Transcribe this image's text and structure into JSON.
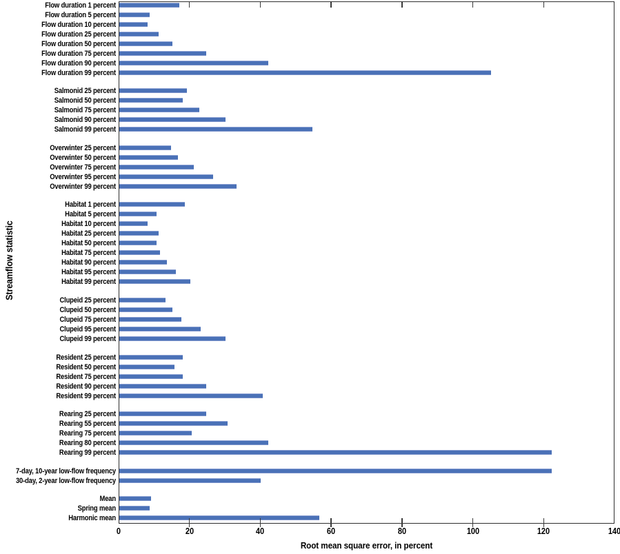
{
  "chart_data": {
    "type": "bar",
    "orientation": "horizontal",
    "title": "",
    "xlabel": "Root mean square error, in percent",
    "ylabel": "Streamflow statistic",
    "xlim": [
      0,
      140
    ],
    "x_ticks": [
      0,
      20,
      40,
      60,
      80,
      100,
      120,
      140
    ],
    "grid": false,
    "legend": "none",
    "bar_color": "#4a71b7",
    "bar_edge_color": "#8ba0d3",
    "axis_color": "#2e2e2e",
    "groups": [
      {
        "name": "Flow duration",
        "items": [
          {
            "label": "Flow duration 1 percent",
            "value": 17
          },
          {
            "label": "Flow duration 5 percent",
            "value": 8.5
          },
          {
            "label": "Flow duration 10 percent",
            "value": 8
          },
          {
            "label": "Flow duration 25 percent",
            "value": 11
          },
          {
            "label": "Flow duration 50 percent",
            "value": 15
          },
          {
            "label": "Flow duration 75 percent",
            "value": 24.5
          },
          {
            "label": "Flow duration 90 percent",
            "value": 42
          },
          {
            "label": "Flow duration 99 percent",
            "value": 105
          }
        ]
      },
      {
        "name": "Salmonid",
        "items": [
          {
            "label": "Salmonid 25 percent",
            "value": 19
          },
          {
            "label": "Salmonid 50 percent",
            "value": 18
          },
          {
            "label": "Salmonid 75 percent",
            "value": 22.5
          },
          {
            "label": "Salmonid 90 percent",
            "value": 30
          },
          {
            "label": "Salmonid 99 percent",
            "value": 54.5
          }
        ]
      },
      {
        "name": "Overwinter",
        "items": [
          {
            "label": "Overwinter 25 percent",
            "value": 14.5
          },
          {
            "label": "Overwinter 50 percent",
            "value": 16.5
          },
          {
            "label": "Overwinter 75 percent",
            "value": 21
          },
          {
            "label": "Overwinter 95 percent",
            "value": 26.5
          },
          {
            "label": "Overwinter 99 percent",
            "value": 33
          }
        ]
      },
      {
        "name": "Habitat",
        "items": [
          {
            "label": "Habitat 1 percent",
            "value": 18.5
          },
          {
            "label": "Habitat 5 percent",
            "value": 10.5
          },
          {
            "label": "Habitat 10 percent",
            "value": 8
          },
          {
            "label": "Habitat 25 percent",
            "value": 11
          },
          {
            "label": "Habitat 50 percent",
            "value": 10.5
          },
          {
            "label": "Habitat 75 percent",
            "value": 11.5
          },
          {
            "label": "Habitat 90 percent",
            "value": 13.5
          },
          {
            "label": "Habitat 95 percent",
            "value": 16
          },
          {
            "label": "Habitat 99 percent",
            "value": 20
          }
        ]
      },
      {
        "name": "Clupeid",
        "items": [
          {
            "label": "Clupeid 25 percent",
            "value": 13
          },
          {
            "label": "Clupeid 50 percent",
            "value": 15
          },
          {
            "label": "Clupeid 75 percent",
            "value": 17.5
          },
          {
            "label": "Clupeid 95 percent",
            "value": 23
          },
          {
            "label": "Clupeid 99 percent",
            "value": 30
          }
        ]
      },
      {
        "name": "Resident",
        "items": [
          {
            "label": "Resident 25 percent",
            "value": 18
          },
          {
            "label": "Resident 50 percent",
            "value": 15.5
          },
          {
            "label": "Resident 75 percent",
            "value": 18
          },
          {
            "label": "Resident 90 percent",
            "value": 24.5
          },
          {
            "label": "Resident 99 percent",
            "value": 40.5
          }
        ]
      },
      {
        "name": "Rearing",
        "items": [
          {
            "label": "Rearing 25 percent",
            "value": 24.5
          },
          {
            "label": "Rearing 55 percent",
            "value": 30.5
          },
          {
            "label": "Rearing 75 percent",
            "value": 20.5
          },
          {
            "label": "Rearing 80 percent",
            "value": 42
          },
          {
            "label": "Rearing 99 percent",
            "value": 122
          }
        ]
      },
      {
        "name": "Low-flow frequency",
        "items": [
          {
            "label": "7-day, 10-year low-flow frequency",
            "value": 122
          },
          {
            "label": "30-day, 2-year low-flow frequency",
            "value": 40
          }
        ]
      },
      {
        "name": "Means",
        "items": [
          {
            "label": "Mean",
            "value": 9
          },
          {
            "label": "Spring mean",
            "value": 8.5
          },
          {
            "label": "Harmonic mean",
            "value": 56.5
          }
        ]
      }
    ]
  }
}
